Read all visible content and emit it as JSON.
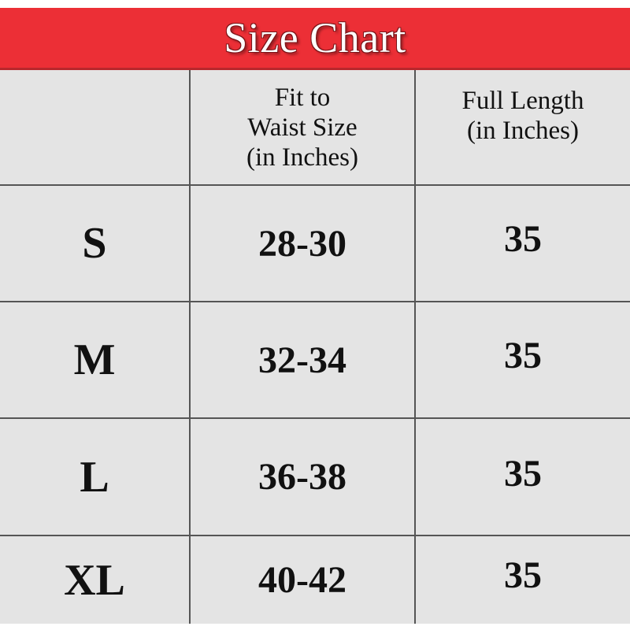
{
  "title": "Size Chart",
  "colors": {
    "banner": "#ec2f36",
    "table_background": "#e4e4e4",
    "text": "#111111"
  },
  "columns": [
    "",
    "Fit to Waist Size (in Inches)",
    "Full Length (in Inches)"
  ],
  "header_lines": {
    "waist": [
      "Fit to",
      "Waist Size",
      "(in Inches)"
    ],
    "length": [
      "Full Length",
      "(in Inches)"
    ]
  },
  "rows": [
    {
      "size": "S",
      "waist": "28-30",
      "length": "35"
    },
    {
      "size": "M",
      "waist": "32-34",
      "length": "35"
    },
    {
      "size": "L",
      "waist": "36-38",
      "length": "35"
    },
    {
      "size": "XL",
      "waist": "40-42",
      "length": "35"
    }
  ]
}
